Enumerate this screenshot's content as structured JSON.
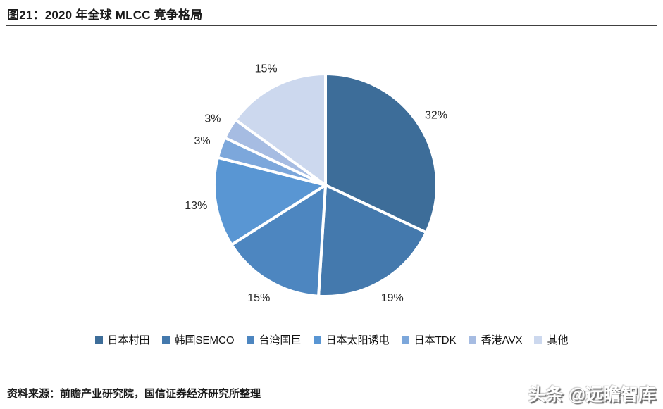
{
  "header": {
    "title": "图21：2020 年全球 MLCC 竞争格局"
  },
  "chart_data": {
    "type": "pie",
    "title": "2020 年全球 MLCC 竞争格局",
    "categories": [
      "日本村田",
      "韩国SEMCO",
      "台湾国巨",
      "日本太阳诱电",
      "日本TDK",
      "香港AVX",
      "其他"
    ],
    "values": [
      32,
      19,
      15,
      13,
      3,
      3,
      15
    ],
    "labels": [
      "32%",
      "19%",
      "15%",
      "13%",
      "3%",
      "3%",
      "15%"
    ],
    "colors": [
      "#3d6d99",
      "#4479ad",
      "#4d86c0",
      "#5996d3",
      "#7ca7db",
      "#a6bce2",
      "#ccd8ee"
    ],
    "start_angle_deg": 0,
    "direction": "clockwise",
    "slice_border_color": "#ffffff",
    "legend_position": "bottom"
  },
  "footer": {
    "source": "资料来源：前瞻产业研究院，国信证券经济研究所整理",
    "watermark": "头条 @远瞻智库"
  }
}
